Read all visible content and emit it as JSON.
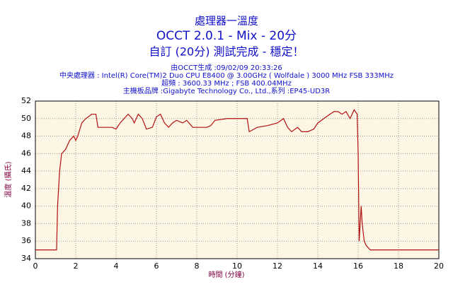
{
  "chart_data": {
    "type": "line",
    "title": "處理器一溫度",
    "subtitle": "OCCT 2.0.1 - Mix - 20分",
    "annotations": [
      "自訂 (20分) 測試完成 - 穩定！",
      "由OCCT生成 :09/02/09 20:33:26",
      "中央處理器 : Intel(R) Core(TM)2 Duo CPU E8400 @ 3.00GHz ( Wolfdale ) 3000 MHz FSB 333MHz",
      "超頻 : 3600.33 MHz ; FSB 400.04MHz",
      "主機板品牌 :Gigabyte Technology Co., Ltd.,系列 :EP45-UD3R"
    ],
    "xlabel": "時間 (分鐘)",
    "ylabel": "溫度 (攝氏)",
    "color": "#b01010",
    "grid": true,
    "x": [
      0,
      1.0,
      1.05,
      1.1,
      1.2,
      1.3,
      1.5,
      1.7,
      1.9,
      2.0,
      2.1,
      2.3,
      2.5,
      2.8,
      3.0,
      3.1,
      3.5,
      3.8,
      4.0,
      4.2,
      4.4,
      4.6,
      4.8,
      4.9,
      5.1,
      5.3,
      5.5,
      5.8,
      6.0,
      6.2,
      6.4,
      6.6,
      6.8,
      7.0,
      7.3,
      7.5,
      7.8,
      8.5,
      8.7,
      8.9,
      9.5,
      10.5,
      10.6,
      11.0,
      11.5,
      12.0,
      12.3,
      12.5,
      12.7,
      13.0,
      13.2,
      13.5,
      13.8,
      14.0,
      14.3,
      14.6,
      14.8,
      15.0,
      15.2,
      15.4,
      15.6,
      15.8,
      15.95,
      16.0,
      16.05,
      16.1,
      16.15,
      16.2,
      16.3,
      16.4,
      16.6,
      20
    ],
    "values": [
      35,
      35,
      35,
      40,
      44,
      46,
      46.5,
      47.5,
      48,
      47.5,
      48,
      49.5,
      50,
      50.5,
      50.5,
      49,
      49,
      49,
      48.8,
      49.5,
      50,
      50.5,
      50,
      49.5,
      50.5,
      50,
      48.8,
      49,
      50.2,
      50.5,
      49.5,
      49,
      49.5,
      49.8,
      49.5,
      49.8,
      49,
      49,
      49.2,
      49.8,
      50,
      50,
      48.5,
      49,
      49.2,
      49.5,
      50,
      49,
      48.5,
      49,
      48.5,
      48.5,
      48.8,
      49.5,
      50,
      50.5,
      50.8,
      50.8,
      50.5,
      50.8,
      50,
      51,
      50.5,
      46,
      36,
      38,
      40,
      38,
      36,
      35.5,
      35,
      35
    ],
    "xlim": [
      0,
      20
    ],
    "xticks": [
      0,
      2,
      4,
      6,
      8,
      10,
      12,
      14,
      16,
      18,
      20
    ],
    "ylim": [
      34,
      52
    ],
    "yticks": [
      34,
      36,
      38,
      40,
      42,
      44,
      46,
      48,
      50,
      52
    ]
  }
}
